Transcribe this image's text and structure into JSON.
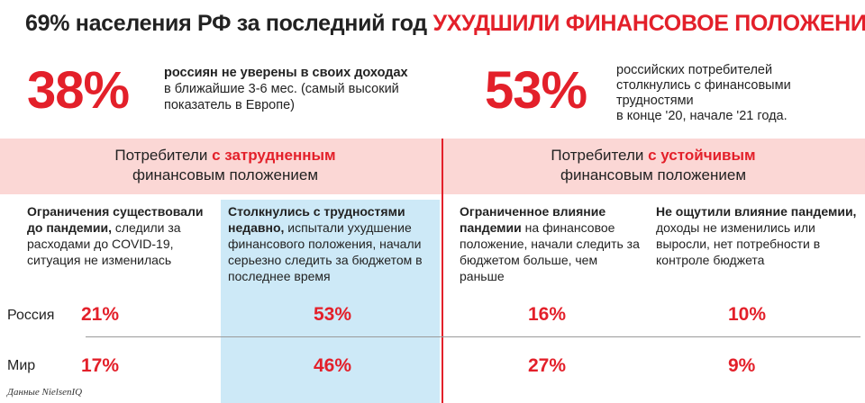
{
  "title": {
    "prefix": "69% населения РФ за последний год",
    "highlight": "УХУДШИЛИ ФИНАНСОВОЕ ПОЛОЖЕНИЕ"
  },
  "stats": [
    {
      "value": "38%",
      "text_bold": "россиян не уверены в своих доходах",
      "text_rest": "в ближайшие 3-6 мес. (самый высокий показатель в Европе)"
    },
    {
      "value": "53%",
      "text_lines": [
        "российских потребителей",
        "столкнулись с финансовыми",
        "трудностями",
        "в конце '20, начале '21 года."
      ]
    }
  ],
  "groups": [
    {
      "prefix": "Потребители ",
      "highlight": "с затрудненным",
      "suffix": "финансовым положением"
    },
    {
      "prefix": "Потребители ",
      "highlight": "с устойчивым",
      "suffix": "финансовым положением"
    }
  ],
  "columns": [
    {
      "bold": "Ограничения существовали до пандемии,",
      "rest": " следили за расходами до COVID-19, ситуация не изменилась"
    },
    {
      "bold": "Столкнулись с трудностями недавно,",
      "rest": " испытали ухудшение финансового положения, начали серьезно следить за бюджетом в последнее время"
    },
    {
      "bold": "Ограниченное влияние пандемии",
      "rest": " на финансовое положение, начали следить за бюджетом больше, чем раньше"
    },
    {
      "bold": "Не ощутили влияние пандемии,",
      "rest": " доходы не изменились или выросли, нет потребности в контроле бюджета"
    }
  ],
  "rows": [
    {
      "label": "Россия",
      "values": [
        "21%",
        "53%",
        "16%",
        "10%"
      ]
    },
    {
      "label": "Мир",
      "values": [
        "17%",
        "46%",
        "27%",
        "9%"
      ]
    }
  ],
  "source": "Данные NielsenIQ",
  "colors": {
    "accent_red": "#e3202a",
    "band_pink": "#fbd7d5",
    "highlight_blue": "#cde9f7"
  }
}
